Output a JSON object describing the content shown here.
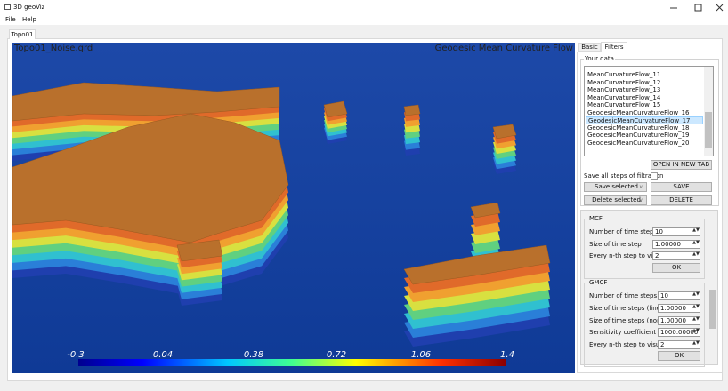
{
  "window": {
    "title": "3D geoViz"
  },
  "menu": [
    "File",
    "Help"
  ],
  "tabs": [
    "Topo01"
  ],
  "view": {
    "file_label": "Topo01_Noise.grd",
    "filter_label": "Geodesic Mean Curvature Flow",
    "colorbar_labels": [
      "-0.3",
      "0.04",
      "0.38",
      "0.72",
      "1.06",
      "1.4"
    ]
  },
  "panel": {
    "tabs": [
      "Basic",
      "Filters"
    ],
    "your_data": {
      "title": "Your data",
      "items": [
        "MeanCurvatureFlow_11",
        "MeanCurvatureFlow_12",
        "MeanCurvatureFlow_13",
        "MeanCurvatureFlow_14",
        "MeanCurvatureFlow_15",
        "GeodesicMeanCurvatureFlow_16",
        "GeodesicMeanCurvatureFlow_17",
        "GeodesicMeanCurvatureFlow_18",
        "GeodesicMeanCurvatureFlow_19",
        "GeodesicMeanCurvatureFlow_20"
      ]
    },
    "open_button": "OPEN IN NEW TAB",
    "save_all_label": "Save all steps of filtration",
    "save_combo": "Save selected",
    "save_button": "SAVE",
    "delete_combo": "Delete selected",
    "delete_button": "DELETE",
    "mcf": {
      "title": "MCF",
      "rows": [
        {
          "label": "Number of time steps",
          "value": "10"
        },
        {
          "label": "Size of time step",
          "value": "1.00000"
        },
        {
          "label": "Every n-th step to visualize",
          "value": "2"
        }
      ],
      "ok": "OK"
    },
    "gmcf": {
      "title": "GMCF",
      "rows": [
        {
          "label": "Number of time steps",
          "value": "10"
        },
        {
          "label": "Size of time steps (linear)",
          "value": "1.00000"
        },
        {
          "label": "Size of time steps (non-linear)",
          "value": "1.00000"
        },
        {
          "label": "Sensitivity coefficient",
          "value": "1000.00000"
        },
        {
          "label": "Every n-th step to visualize",
          "value": "2"
        }
      ],
      "ok": "OK"
    }
  }
}
